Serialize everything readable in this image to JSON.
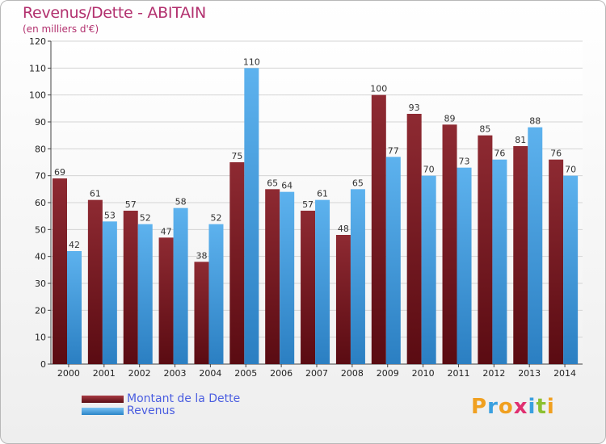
{
  "header": {
    "title": "Revenus/Dette - ABITAIN",
    "subtitle": "(en milliers d'€)"
  },
  "chart_data": {
    "type": "bar",
    "title": "Revenus/Dette - ABITAIN",
    "ylabel": "(en milliers d'€)",
    "xlabel": "",
    "categories": [
      "2000",
      "2001",
      "2002",
      "2003",
      "2004",
      "2005",
      "2006",
      "2007",
      "2008",
      "2009",
      "2010",
      "2011",
      "2012",
      "2013",
      "2014"
    ],
    "series": [
      {
        "name": "Montant de la Dette",
        "color": "#7a1a22",
        "values": [
          69,
          61,
          57,
          47,
          38,
          75,
          65,
          57,
          48,
          100,
          93,
          89,
          85,
          81,
          76
        ]
      },
      {
        "name": "Revenus",
        "color": "#4ea6e6",
        "values": [
          42,
          53,
          52,
          58,
          52,
          110,
          64,
          61,
          65,
          77,
          70,
          73,
          76,
          88,
          70
        ]
      }
    ],
    "ylim": [
      0,
      120
    ],
    "yticks": [
      0,
      10,
      20,
      30,
      40,
      50,
      60,
      70,
      80,
      90,
      100,
      110,
      120
    ],
    "grid": true,
    "legend": "bottom-left"
  },
  "legend": {
    "items": [
      {
        "label": "Montant de la Dette",
        "color": "#7a1a22"
      },
      {
        "label": "Revenus",
        "color": "#4ea6e6"
      }
    ]
  },
  "logo": {
    "letters": [
      "P",
      "r",
      "o",
      "x",
      "i",
      "t",
      "i"
    ],
    "colors": [
      "#f0a020",
      "#3aa0e0",
      "#f0a020",
      "#e03070",
      "#3aa0e0",
      "#8cc030",
      "#f0a020"
    ]
  }
}
